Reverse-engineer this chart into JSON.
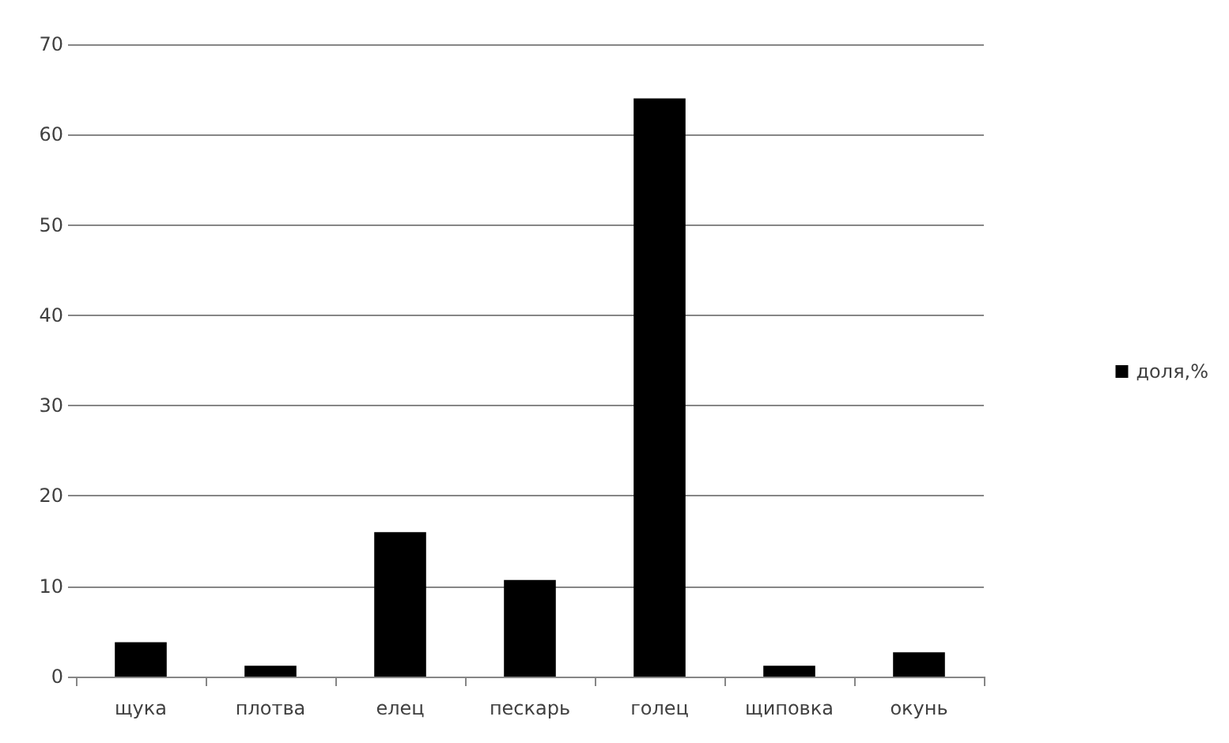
{
  "chart_data": {
    "type": "bar",
    "categories": [
      "щука",
      "плотва",
      "елец",
      "пескарь",
      "голец",
      "щиповка",
      "окунь"
    ],
    "series": [
      {
        "name": "доля,%",
        "color": "#000000",
        "values": [
          3.8,
          1.2,
          16,
          10.7,
          64,
          1.2,
          2.7
        ]
      }
    ],
    "ylim": [
      0,
      70
    ],
    "yticks": [
      0,
      10,
      20,
      30,
      40,
      50,
      60,
      70
    ],
    "grid": "y",
    "legend": "right"
  }
}
